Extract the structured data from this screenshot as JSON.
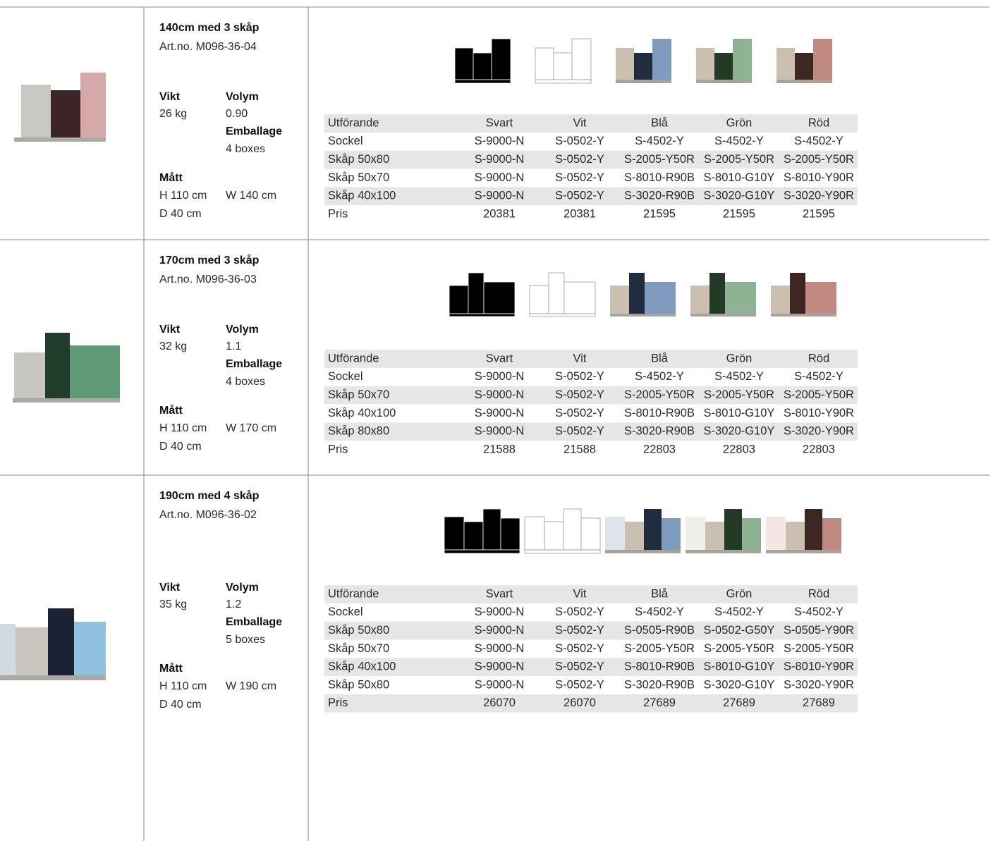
{
  "products": [
    {
      "title": "140cm med 3 skåp",
      "art_no": "Art.no. M096-36-04",
      "weight_label": "Vikt",
      "weight": "26 kg",
      "volume_label": "Volym",
      "volume": "0.90",
      "packaging_label": "Emballage",
      "packaging": "4 boxes",
      "dimensions_label": "Mått",
      "height": "H 110 cm",
      "width": "W 140 cm",
      "depth": "D 40 cm",
      "table": {
        "header": [
          "Utförande",
          "Svart",
          "Vit",
          "Blå",
          "Grön",
          "Röd"
        ],
        "rows": [
          [
            "Sockel",
            "S-9000-N",
            "S-0502-Y",
            "S-4502-Y",
            "S-4502-Y",
            "S-4502-Y"
          ],
          [
            "Skåp 50x80",
            "S-9000-N",
            "S-0502-Y",
            "S-2005-Y50R",
            "S-2005-Y50R",
            "S-2005-Y50R"
          ],
          [
            "Skåp 50x70",
            "S-9000-N",
            "S-0502-Y",
            "S-8010-R90B",
            "S-8010-G10Y",
            "S-8010-Y90R"
          ],
          [
            "Skåp 40x100",
            "S-9000-N",
            "S-0502-Y",
            "S-3020-R90B",
            "S-3020-G10Y",
            "S-3020-Y90R"
          ],
          [
            "Pris",
            "20381",
            "20381",
            "21595",
            "21595",
            "21595"
          ]
        ]
      }
    },
    {
      "title": "170cm med 3 skåp",
      "art_no": "Art.no. M096-36-03",
      "weight_label": "Vikt",
      "weight": "32 kg",
      "volume_label": "Volym",
      "volume": "1.1",
      "packaging_label": "Emballage",
      "packaging": "4 boxes",
      "dimensions_label": "Mått",
      "height": "H 110 cm",
      "width": "W 170 cm",
      "depth": "D 40 cm",
      "table": {
        "header": [
          "Utförande",
          "Svart",
          "Vit",
          "Blå",
          "Grön",
          "Röd"
        ],
        "rows": [
          [
            "Sockel",
            "S-9000-N",
            "S-0502-Y",
            "S-4502-Y",
            "S-4502-Y",
            "S-4502-Y"
          ],
          [
            "Skåp 50x70",
            "S-9000-N",
            "S-0502-Y",
            "S-2005-Y50R",
            "S-2005-Y50R",
            "S-2005-Y50R"
          ],
          [
            "Skåp 40x100",
            "S-9000-N",
            "S-0502-Y",
            "S-8010-R90B",
            "S-8010-G10Y",
            "S-8010-Y90R"
          ],
          [
            "Skåp 80x80",
            "S-9000-N",
            "S-0502-Y",
            "S-3020-R90B",
            "S-3020-G10Y",
            "S-3020-Y90R"
          ],
          [
            "Pris",
            "21588",
            "21588",
            "22803",
            "22803",
            "22803"
          ]
        ]
      }
    },
    {
      "title": "190cm med 4 skåp",
      "art_no": "Art.no. M096-36-02",
      "weight_label": "Vikt",
      "weight": "35 kg",
      "volume_label": "Volym",
      "volume": "1.2",
      "packaging_label": "Emballage",
      "packaging": "5 boxes",
      "dimensions_label": "Mått",
      "height": "H 110 cm",
      "width": "W 190 cm",
      "depth": "D 40 cm",
      "table": {
        "header": [
          "Utförande",
          "Svart",
          "Vit",
          "Blå",
          "Grön",
          "Röd"
        ],
        "rows": [
          [
            "Sockel",
            "S-9000-N",
            "S-0502-Y",
            "S-4502-Y",
            "S-4502-Y",
            "S-4502-Y"
          ],
          [
            "Skåp 50x80",
            "S-9000-N",
            "S-0502-Y",
            "S-0505-R90B",
            "S-0502-G50Y",
            "S-0505-Y90R"
          ],
          [
            "Skåp 50x70",
            "S-9000-N",
            "S-0502-Y",
            "S-2005-Y50R",
            "S-2005-Y50R",
            "S-2005-Y50R"
          ],
          [
            "Skåp 40x100",
            "S-9000-N",
            "S-0502-Y",
            "S-8010-R90B",
            "S-8010-G10Y",
            "S-8010-Y90R"
          ],
          [
            "Skåp 50x80",
            "S-9000-N",
            "S-0502-Y",
            "S-3020-R90B",
            "S-3020-G10Y",
            "S-3020-Y90R"
          ],
          [
            "Pris",
            "26070",
            "26070",
            "27689",
            "27689",
            "27689"
          ]
        ]
      }
    }
  ]
}
